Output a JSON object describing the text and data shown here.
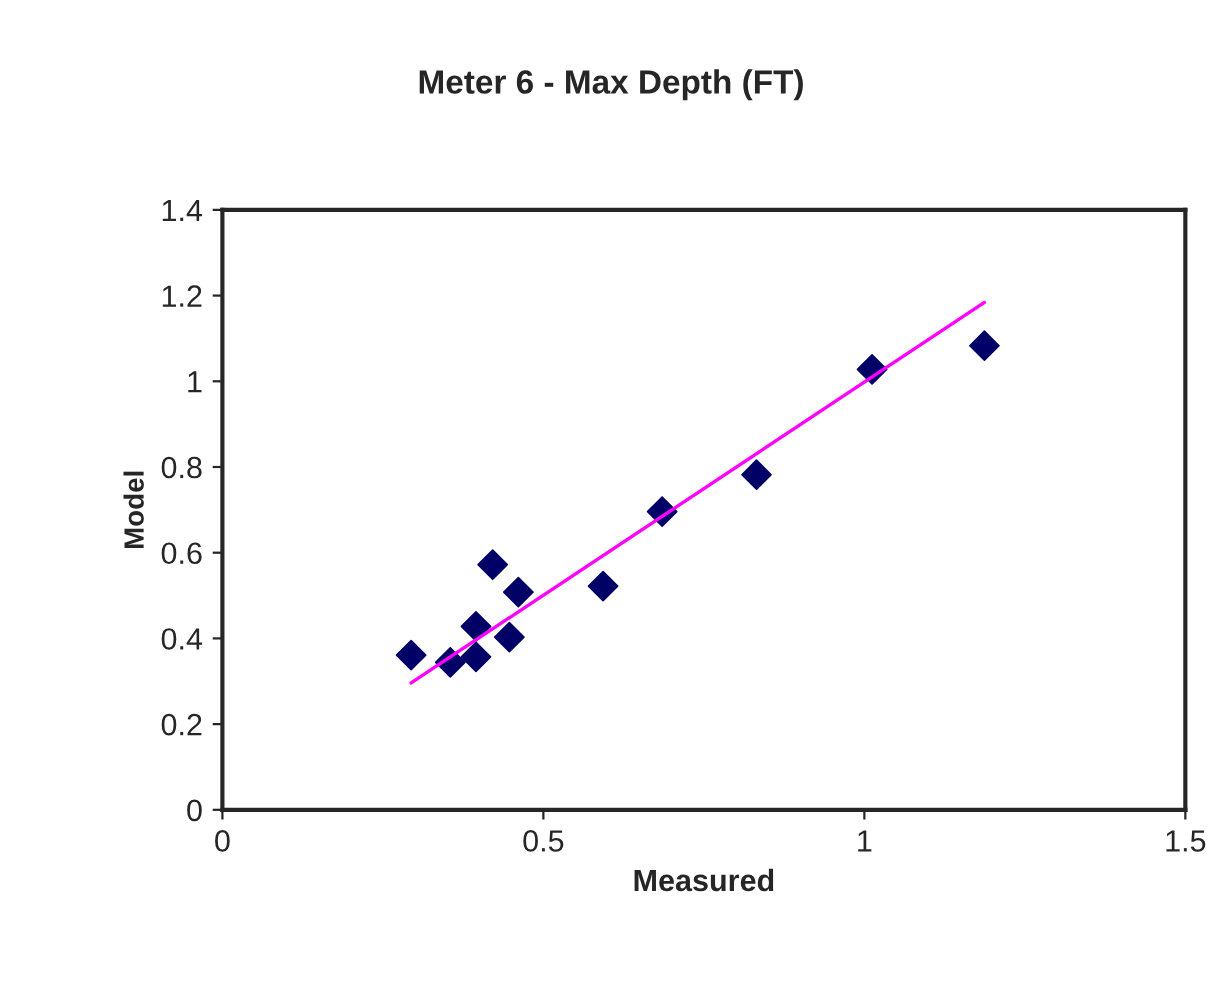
{
  "chart_data": {
    "type": "scatter",
    "title": "Meter 6 - Max Depth (FT)",
    "xlabel": "Measured",
    "ylabel": "Model",
    "x": [
      0.294,
      0.355,
      0.395,
      0.395,
      0.421,
      0.461,
      0.447,
      0.593,
      0.685,
      0.832,
      1.012,
      1.187
    ],
    "series": [
      {
        "color": "#000066",
        "values": [
          0.361,
          0.344,
          0.428,
          0.357,
          0.572,
          0.508,
          0.403,
          0.522,
          0.696,
          0.782,
          1.028,
          1.083
        ]
      },
      {
        "type": "line",
        "marker": "none",
        "color": "#ff00ff",
        "x": [
          0.294,
          1.187
        ],
        "values": [
          0.296,
          1.184
        ]
      }
    ],
    "xlim": [
      0,
      1.5
    ],
    "xticks": [
      0,
      0.5,
      1,
      1.5
    ],
    "ylim": [
      0,
      1.4
    ],
    "yticks": [
      0,
      0.2,
      0.4,
      0.6,
      0.8,
      1,
      1.2,
      1.4
    ],
    "grid": false,
    "legend": false,
    "marker": "diamond"
  }
}
